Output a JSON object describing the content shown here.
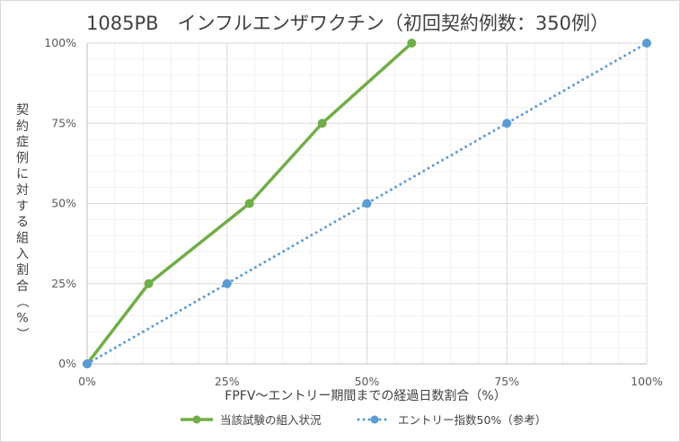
{
  "chart_data": {
    "type": "line",
    "title": "1085PB　インフルエンザワクチン（初回契約例数：350例）",
    "xlabel": "FPFV～エントリー期間までの経過日数割合（%）",
    "ylabel": "契約症例に対する組入割合（%）",
    "xlim": [
      0,
      100
    ],
    "ylim": [
      0,
      100
    ],
    "x_ticks": [
      "0%",
      "25%",
      "50%",
      "75%",
      "100%"
    ],
    "y_ticks": [
      "0%",
      "25%",
      "50%",
      "75%",
      "100%"
    ],
    "grid": true,
    "legend_position": "bottom",
    "series": [
      {
        "name": "当該試験の組入状況",
        "color": "#70ad47",
        "style": "solid",
        "x": [
          0,
          11,
          29,
          42,
          58
        ],
        "y": [
          0,
          25,
          50,
          75,
          100
        ]
      },
      {
        "name": "エントリー指数50%（参考）",
        "color": "#5b9bd5",
        "style": "dotted",
        "x": [
          0,
          25,
          50,
          75,
          100
        ],
        "y": [
          0,
          25,
          50,
          75,
          100
        ]
      }
    ]
  }
}
